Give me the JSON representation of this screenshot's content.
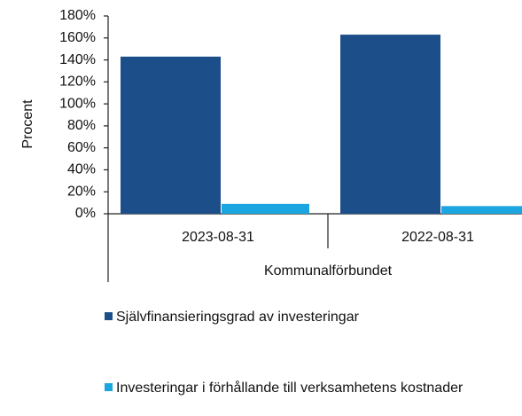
{
  "chart_data": {
    "type": "bar",
    "ylabel": "Procent",
    "xlabel": "Kommunalförbundet",
    "categories": [
      "2023-08-31",
      "2022-08-31"
    ],
    "series": [
      {
        "name": "Självfinansieringsgrad av investeringar",
        "color": "#1c4f8a",
        "values": [
          143,
          163
        ]
      },
      {
        "name": "Investeringar i förhållande till verksamhetens kostnader",
        "color": "#1ba6e1",
        "values": [
          9,
          7
        ]
      }
    ],
    "ylim": [
      0,
      180
    ],
    "yticks": [
      {
        "value": 0,
        "label": "0%"
      },
      {
        "value": 20,
        "label": "20%"
      },
      {
        "value": 40,
        "label": "40%"
      },
      {
        "value": 60,
        "label": "60%"
      },
      {
        "value": 80,
        "label": "80%"
      },
      {
        "value": 100,
        "label": "100%"
      },
      {
        "value": 120,
        "label": "120%"
      },
      {
        "value": 140,
        "label": "140%"
      },
      {
        "value": 160,
        "label": "160%"
      },
      {
        "value": 180,
        "label": "180%"
      }
    ],
    "grid": false,
    "legend": "bottom"
  }
}
